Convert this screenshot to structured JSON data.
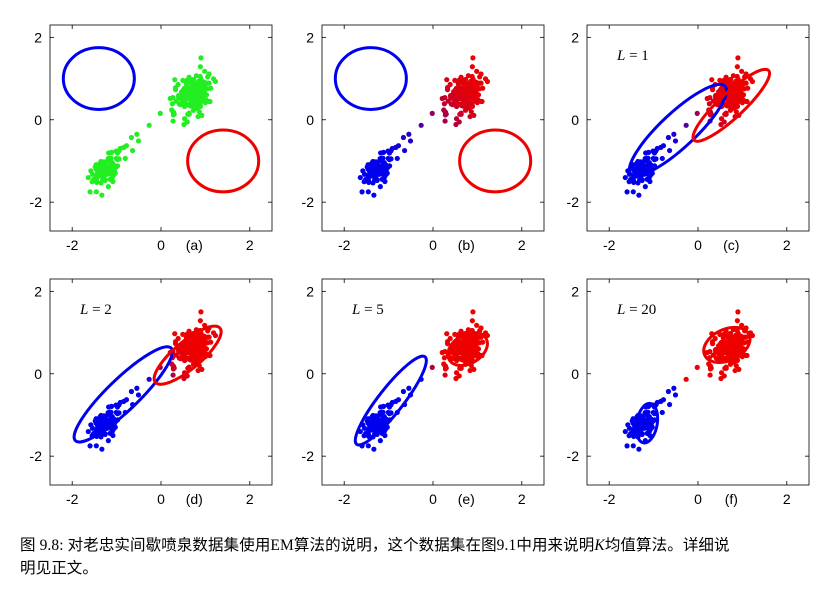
{
  "chart_data": [
    {
      "type": "scatter",
      "panel_label": "(a)",
      "annotation": "",
      "xlim": [
        -2.5,
        2.5
      ],
      "ylim": [
        -2.7,
        2.3
      ],
      "xticks": [
        "-2",
        "0",
        "2"
      ],
      "yticks": [
        "-2",
        "0",
        "2"
      ],
      "series": [
        {
          "colour": "#22ee22",
          "points": "all"
        }
      ],
      "ellipses": [
        {
          "center": [
            -1.4,
            1.0
          ],
          "rx": 0.8,
          "ry": 0.75,
          "angle": 0,
          "colour": "#0000ee"
        },
        {
          "center": [
            1.4,
            -1.0
          ],
          "rx": 0.8,
          "ry": 0.75,
          "angle": 0,
          "colour": "#ee0000"
        }
      ]
    },
    {
      "type": "scatter",
      "panel_label": "(b)",
      "annotation": "",
      "xlim": [
        -2.5,
        2.5
      ],
      "ylim": [
        -2.7,
        2.3
      ],
      "xticks": [
        "-2",
        "0",
        "2"
      ],
      "yticks": [
        "-2",
        "0",
        "2"
      ],
      "colouring": "responsibility",
      "ellipses": [
        {
          "center": [
            -1.4,
            1.0
          ],
          "rx": 0.8,
          "ry": 0.75,
          "angle": 0,
          "colour": "#0000ee"
        },
        {
          "center": [
            1.4,
            -1.0
          ],
          "rx": 0.8,
          "ry": 0.75,
          "angle": 0,
          "colour": "#ee0000"
        }
      ]
    },
    {
      "type": "scatter",
      "panel_label": "(c)",
      "annotation": "L = 1",
      "xlim": [
        -2.5,
        2.5
      ],
      "ylim": [
        -2.7,
        2.3
      ],
      "xticks": [
        "-2",
        "0",
        "2"
      ],
      "yticks": [
        "-2",
        "0",
        "2"
      ],
      "colouring": "responsibility",
      "ellipses": [
        {
          "center": [
            -0.45,
            -0.25
          ],
          "rx": 1.45,
          "ry": 0.42,
          "angle": 43,
          "colour": "#0000ee"
        },
        {
          "center": [
            0.75,
            0.35
          ],
          "rx": 1.15,
          "ry": 0.3,
          "angle": 43,
          "colour": "#ee0000"
        }
      ]
    },
    {
      "type": "scatter",
      "panel_label": "(d)",
      "annotation": "L = 2",
      "xlim": [
        -2.5,
        2.5
      ],
      "ylim": [
        -2.7,
        2.3
      ],
      "xticks": [
        "-2",
        "0",
        "2"
      ],
      "yticks": [
        "-2",
        "0",
        "2"
      ],
      "colouring": "responsibility",
      "ellipses": [
        {
          "center": [
            -0.85,
            -0.5
          ],
          "rx": 1.5,
          "ry": 0.38,
          "angle": 44,
          "colour": "#0000ee"
        },
        {
          "center": [
            0.6,
            0.45
          ],
          "rx": 0.95,
          "ry": 0.33,
          "angle": 40,
          "colour": "#ee0000"
        }
      ]
    },
    {
      "type": "scatter",
      "panel_label": "(e)",
      "annotation": "L = 5",
      "xlim": [
        -2.5,
        2.5
      ],
      "ylim": [
        -2.7,
        2.3
      ],
      "xticks": [
        "-2",
        "0",
        "2"
      ],
      "yticks": [
        "-2",
        "0",
        "2"
      ],
      "colouring": "responsibility",
      "ellipses": [
        {
          "center": [
            -0.95,
            -0.65
          ],
          "rx": 1.25,
          "ry": 0.3,
          "angle": 52,
          "colour": "#0000ee"
        },
        {
          "center": [
            0.78,
            0.6
          ],
          "rx": 0.48,
          "ry": 0.35,
          "angle": 30,
          "colour": "#ee0000"
        }
      ]
    },
    {
      "type": "scatter",
      "panel_label": "(f)",
      "annotation": "L = 20",
      "xlim": [
        -2.5,
        2.5
      ],
      "ylim": [
        -2.7,
        2.3
      ],
      "xticks": [
        "-2",
        "0",
        "2"
      ],
      "yticks": [
        "-2",
        "0",
        "2"
      ],
      "colouring": "responsibility",
      "ellipses": [
        {
          "center": [
            -1.15,
            -1.2
          ],
          "rx": 0.45,
          "ry": 0.25,
          "angle": 80,
          "colour": "#0000ee"
        },
        {
          "center": [
            0.65,
            0.7
          ],
          "rx": 0.55,
          "ry": 0.38,
          "angle": 25,
          "colour": "#ee0000"
        }
      ]
    }
  ],
  "caption": {
    "lead": "图 9.8: 对老忠实间歇喷泉数据集使用EM算法的说明，这个数据集在图9.1中用来说明",
    "variable": "K",
    "line1_tail": "均值算法。详细说",
    "line2": "明见正文。"
  },
  "colors": {
    "green": "#22ee22",
    "blue": "#0000ee",
    "red": "#ee0000"
  }
}
